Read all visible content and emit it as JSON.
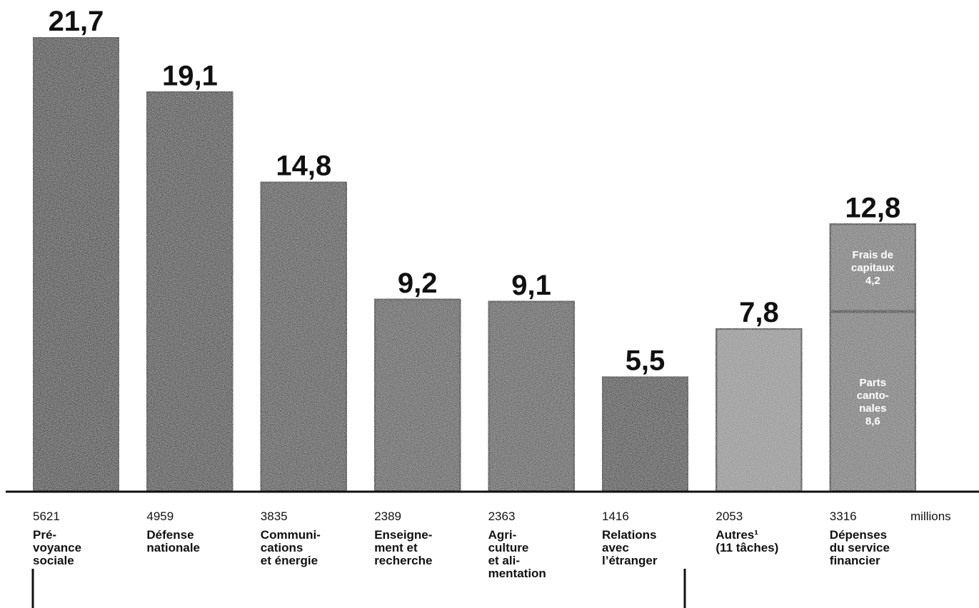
{
  "chart_data": {
    "type": "bar",
    "stacked": true,
    "unit_label": "millions",
    "ylim": [
      0,
      22
    ],
    "grid": false,
    "categories": [
      {
        "lines": [
          "Pré-",
          "voyance",
          "sociale"
        ],
        "amount": "5621",
        "value_label": "21,7"
      },
      {
        "lines": [
          "Défense",
          "nationale"
        ],
        "amount": "4959",
        "value_label": "19,1"
      },
      {
        "lines": [
          "Communi-",
          "cations",
          "et énergie"
        ],
        "amount": "3835",
        "value_label": "14,8"
      },
      {
        "lines": [
          "Enseigne-",
          "ment et",
          "recherche"
        ],
        "amount": "2389",
        "value_label": "9,2"
      },
      {
        "lines": [
          "Agri-",
          "culture",
          "et ali-",
          "mentation"
        ],
        "amount": "2363",
        "value_label": "9,1"
      },
      {
        "lines": [
          "Relations",
          "avec",
          "l’étranger"
        ],
        "amount": "1416",
        "value_label": "5,5"
      },
      {
        "lines": [
          "Autres¹",
          "(11 tâches)"
        ],
        "amount": "2053",
        "value_label": "7,8"
      },
      {
        "lines": [
          "Dépenses",
          "du service",
          "financier"
        ],
        "amount": "3316",
        "value_label": "12,8"
      }
    ],
    "values": [
      21.7,
      19.1,
      14.8,
      9.2,
      9.1,
      5.5,
      7.8,
      12.8
    ],
    "series": [
      {
        "values": [
          21.7,
          19.1,
          14.8,
          9.2,
          9.1,
          5.5,
          7.8,
          8.6
        ],
        "segment_label": [
          null,
          null,
          null,
          null,
          null,
          null,
          null,
          [
            "Parts",
            "canto-",
            "nales",
            "8,6"
          ]
        ]
      },
      {
        "values": [
          0,
          0,
          0,
          0,
          0,
          0,
          0,
          4.2
        ],
        "segment_label": [
          null,
          null,
          null,
          null,
          null,
          null,
          null,
          [
            "Frais de",
            "capitaux",
            "4,2"
          ]
        ]
      }
    ],
    "colors": [
      "#262626",
      "#2e2e2e",
      "#3a3a3a",
      "#4a4a4a",
      "#4a4a4a",
      "#333333",
      "#8c8c8c",
      "#6e6e6e"
    ],
    "outline_color": "#111111"
  }
}
